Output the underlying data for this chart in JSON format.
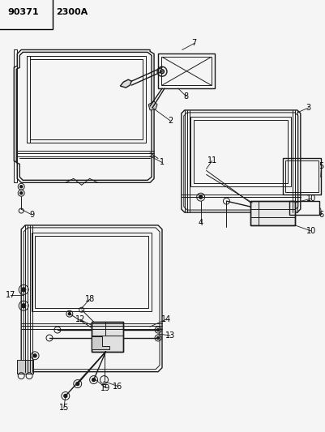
{
  "title_part1": "90371",
  "title_part2": "2300A",
  "background_color": "#f5f5f5",
  "line_color": "#1a1a1a",
  "text_color": "#000000",
  "fig_width": 4.02,
  "fig_height": 5.33,
  "dpi": 100
}
